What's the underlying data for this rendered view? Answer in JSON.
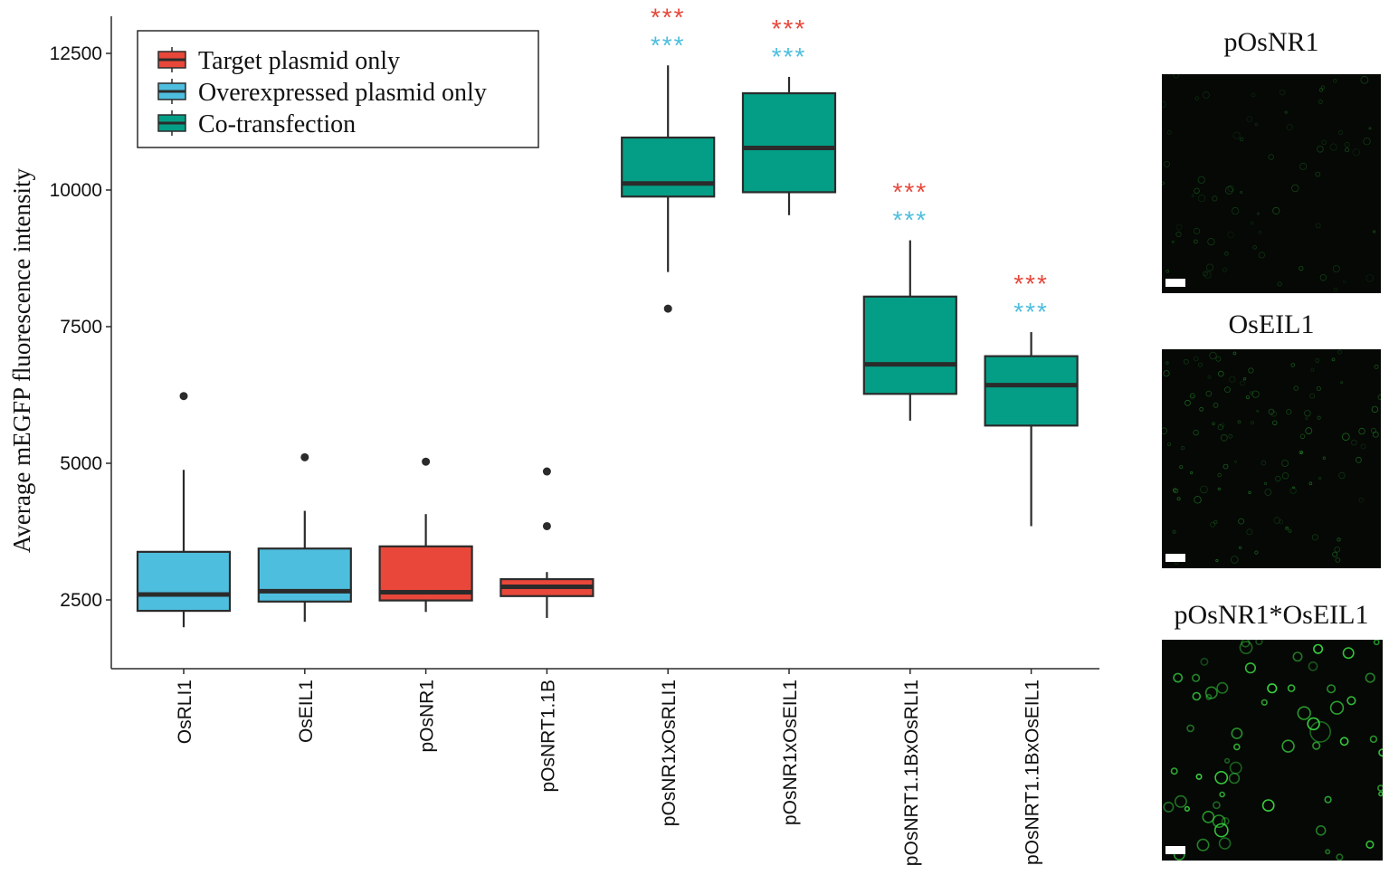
{
  "chart_data": {
    "type": "box",
    "ylabel": "Average mEGFP fluorescence intensity",
    "xlabel": "",
    "ylim": [
      1000,
      13000
    ],
    "yticks": [
      2500,
      5000,
      7500,
      10000,
      12500
    ],
    "grid": false,
    "legend": {
      "position": "top-left",
      "entries": [
        {
          "label": "Target plasmid only",
          "color": "#e8473a"
        },
        {
          "label": "Overexpressed plasmid only",
          "color": "#4ebede"
        },
        {
          "label": "Co-transfection",
          "color": "#049e86"
        }
      ]
    },
    "categories": [
      "OsRLI1",
      "OsEIL1",
      "pOsNR1",
      "pOsNRT1.1B",
      "pOsNR1xOsRLI1",
      "pOsNR1xOsEIL1",
      "pOsNRT1.1BxOsRLI1",
      "pOsNRT1.1BxOsEIL1"
    ],
    "boxes": [
      {
        "category": "OsRLI1",
        "group": "Overexpressed plasmid only",
        "whisker_low": 2000,
        "q1": 2300,
        "median": 2600,
        "q3": 3380,
        "whisker_high": 4880,
        "outliers": [
          6230
        ]
      },
      {
        "category": "OsEIL1",
        "group": "Overexpressed plasmid only",
        "whisker_low": 2100,
        "q1": 2470,
        "median": 2660,
        "q3": 3440,
        "whisker_high": 4130,
        "outliers": [
          5110
        ]
      },
      {
        "category": "pOsNR1",
        "group": "Target plasmid only",
        "whisker_low": 2280,
        "q1": 2490,
        "median": 2640,
        "q3": 3480,
        "whisker_high": 4070,
        "outliers": [
          5030
        ]
      },
      {
        "category": "pOsNRT1.1B",
        "group": "Target plasmid only",
        "whisker_low": 2170,
        "q1": 2570,
        "median": 2740,
        "q3": 2880,
        "whisker_high": 3010,
        "outliers": [
          3850,
          4850
        ]
      },
      {
        "category": "pOsNR1xOsRLI1",
        "group": "Co-transfection",
        "whisker_low": 8500,
        "q1": 9880,
        "median": 10120,
        "q3": 10960,
        "whisker_high": 12280,
        "outliers": [
          7830
        ]
      },
      {
        "category": "pOsNR1xOsEIL1",
        "group": "Co-transfection",
        "whisker_low": 9540,
        "q1": 9960,
        "median": 10770,
        "q3": 11770,
        "whisker_high": 12070,
        "outliers": []
      },
      {
        "category": "pOsNRT1.1BxOsRLI1",
        "group": "Co-transfection",
        "whisker_low": 5780,
        "q1": 6270,
        "median": 6810,
        "q3": 8050,
        "whisker_high": 9080,
        "outliers": []
      },
      {
        "category": "pOsNRT1.1BxOsEIL1",
        "group": "Co-transfection",
        "whisker_low": 3850,
        "q1": 5690,
        "median": 6430,
        "q3": 6960,
        "whisker_high": 7400,
        "outliers": []
      }
    ],
    "annotations": [
      {
        "category": "pOsNR1xOsRLI1",
        "red": "***",
        "blue": "***",
        "value": 12280
      },
      {
        "category": "pOsNR1xOsEIL1",
        "red": "***",
        "blue": "***",
        "value": 12070
      },
      {
        "category": "pOsNRT1.1BxOsRLI1",
        "red": "***",
        "blue": "***",
        "value": 9080
      },
      {
        "category": "pOsNRT1.1BxOsEIL1",
        "red": "***",
        "blue": "***",
        "value": 7400
      }
    ],
    "significance_colors": {
      "red": "#e8473a",
      "blue": "#4ebede"
    }
  },
  "panels": [
    {
      "title": "pOsNR1"
    },
    {
      "title": "OsEIL1"
    },
    {
      "title": "pOsNR1*OsEIL1"
    }
  ],
  "colors": {
    "line": "#2b2b2b",
    "micro_background": "#050805",
    "micro_green": "#39d640"
  }
}
